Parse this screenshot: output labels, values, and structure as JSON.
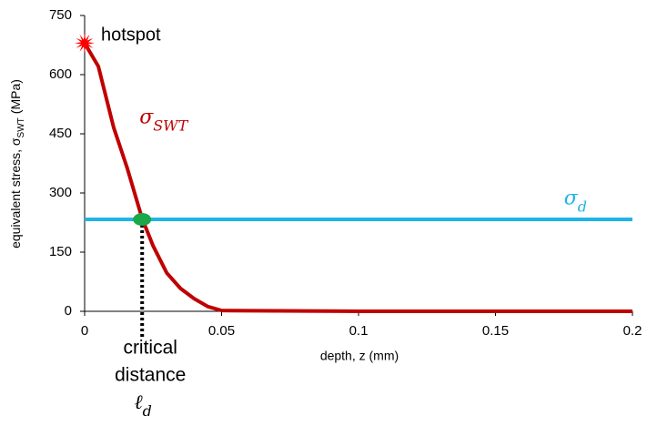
{
  "chart_data": {
    "type": "line",
    "x_label": "depth, z (mm)",
    "y_label": {
      "text": "equivalent stress, σ",
      "sub": "SWT",
      "unit": "(MPa)"
    },
    "xlim": [
      0,
      0.2
    ],
    "xticks": [
      0,
      0.05,
      0.1,
      0.15,
      0.2
    ],
    "ylim": [
      0,
      750
    ],
    "yticks": [
      0,
      150,
      300,
      450,
      600,
      750
    ],
    "series": [
      {
        "label": {
          "symbol": "σ",
          "sub": "SWT"
        },
        "color": "#c00000",
        "x": [
          0,
          0.005,
          0.0106,
          0.0156,
          0.021,
          0.025,
          0.03,
          0.035,
          0.04,
          0.045,
          0.05,
          0.1,
          0.15,
          0.2
        ],
        "values": [
          680,
          621,
          466,
          362,
          235,
          166,
          97,
          58,
          32,
          12,
          2,
          0,
          0,
          0
        ]
      },
      {
        "label": {
          "symbol": "σ",
          "sub": "d"
        },
        "color": "#1fb4e6",
        "x": [
          0,
          0.2
        ],
        "values": [
          233,
          233
        ]
      }
    ],
    "hotspot": {
      "label": "hotspot",
      "x": 0,
      "value": 680,
      "color": "#ff0000"
    },
    "critical_point": {
      "label_lines": [
        "critical",
        "distance"
      ],
      "symbol": "ℓ",
      "sub": "d",
      "x": 0.021,
      "value": 233,
      "color": "#1aa84a"
    }
  }
}
